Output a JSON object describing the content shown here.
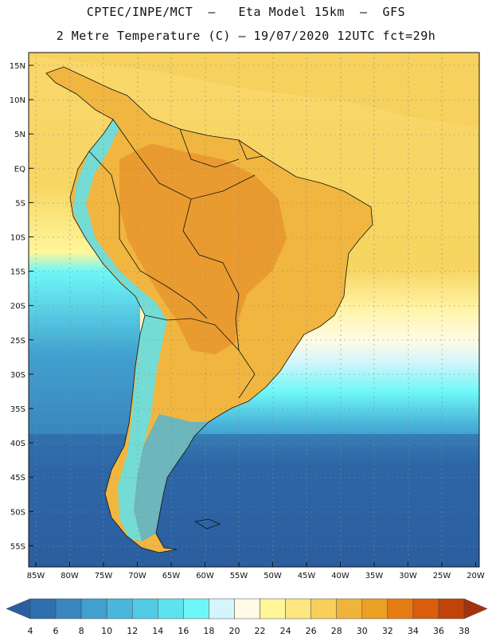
{
  "header": {
    "line1": "CPTEC/INPE/MCT  –   Eta Model 15km  –  GFS",
    "line2": "2 Metre Temperature (C) – 19/07/2020 12UTC fct=29h"
  },
  "map": {
    "lat_ticks": [
      "15N",
      "10N",
      "5N",
      "EQ",
      "5S",
      "10S",
      "15S",
      "20S",
      "25S",
      "30S",
      "35S",
      "40S",
      "45S",
      "50S",
      "55S"
    ],
    "lon_ticks": [
      "85W",
      "80W",
      "75W",
      "70W",
      "65W",
      "60W",
      "55W",
      "50W",
      "45W",
      "40W",
      "35W",
      "30W",
      "25W",
      "20W"
    ],
    "extent": {
      "lon_min": -86,
      "lon_max": -19.5,
      "lat_min": -58,
      "lat_max": 16.5
    }
  },
  "colorbar": {
    "labels": [
      "4",
      "6",
      "8",
      "10",
      "12",
      "14",
      "16",
      "18",
      "20",
      "22",
      "24",
      "26",
      "28",
      "30",
      "32",
      "34",
      "36",
      "38"
    ],
    "colors": [
      "#2b5ea0",
      "#2f6fae",
      "#3a86bf",
      "#41a0cf",
      "#4bb6db",
      "#52cbe5",
      "#5ee3ee",
      "#6ef7f7",
      "#d4f6fb",
      "#fffbe6",
      "#fff69a",
      "#fce680",
      "#f7cf5a",
      "#efb43c",
      "#eb9f23",
      "#e67c14",
      "#d95d0c",
      "#c2430a",
      "#a3330a"
    ]
  }
}
